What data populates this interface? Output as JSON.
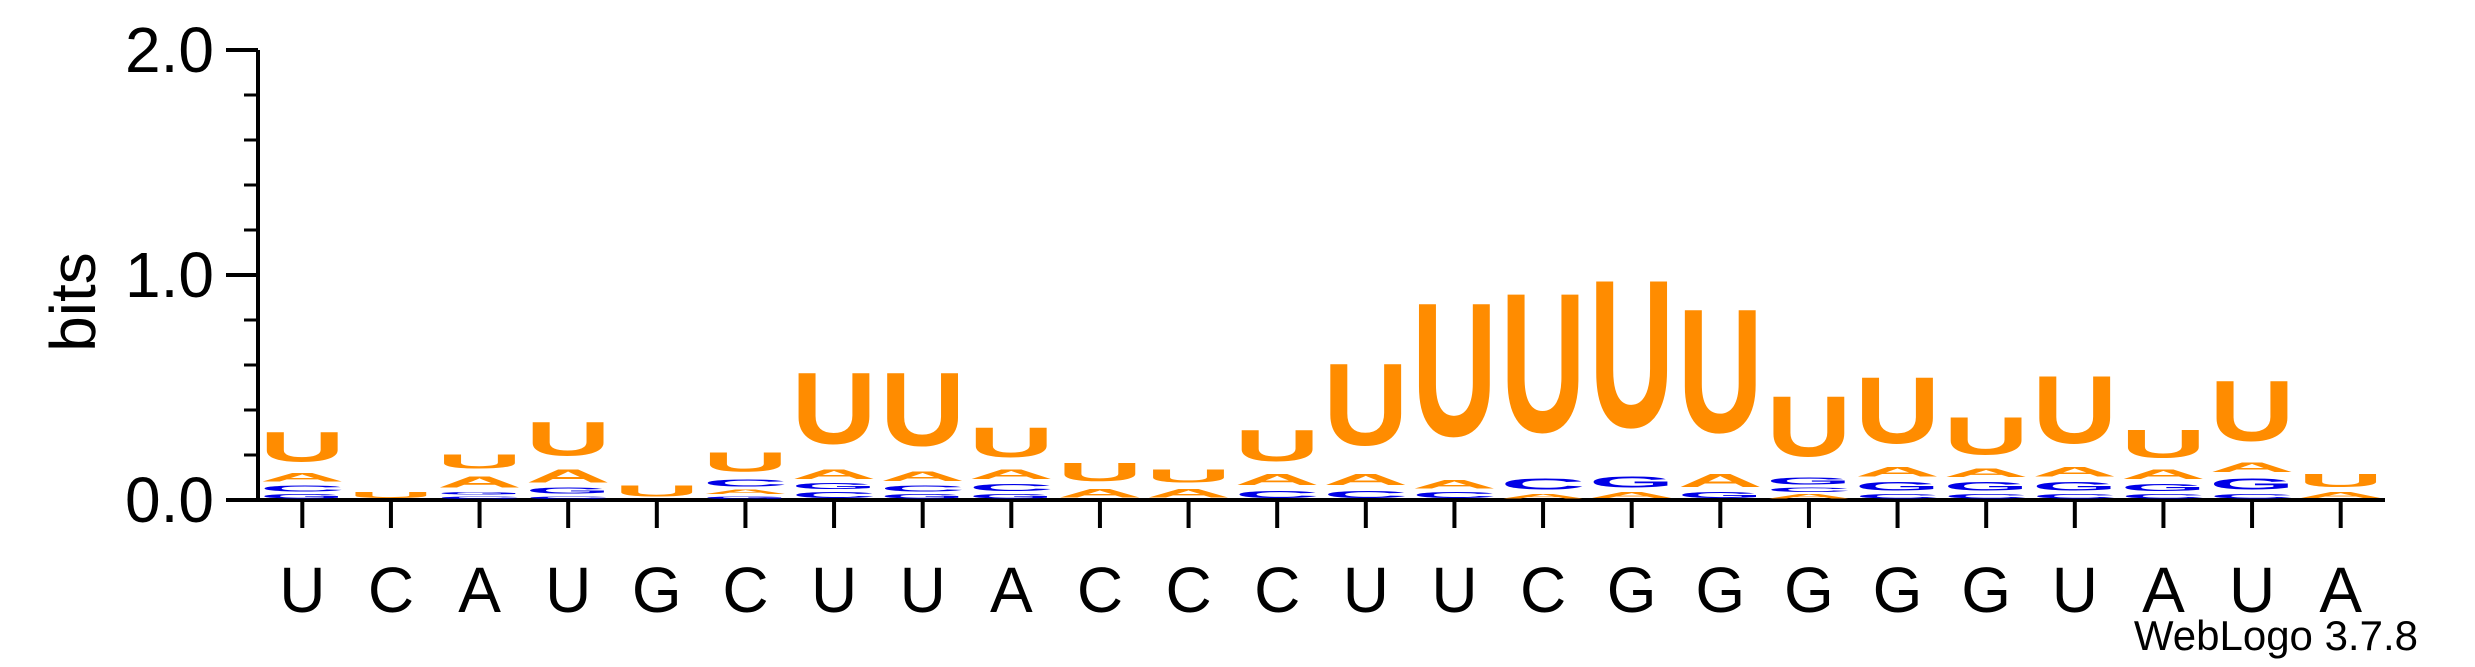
{
  "chart_data": {
    "type": "sequence-logo",
    "title": "",
    "xlabel": "",
    "ylabel": "bits",
    "ylim": [
      0,
      2.0
    ],
    "yticks": [
      "0.0",
      "1.0",
      "2.0"
    ],
    "grid": false,
    "colors": {
      "U": "#FF8C00",
      "A": "#FF8C00",
      "C": "#0000E6",
      "G": "#0000E6"
    },
    "positions": [
      {
        "label": "U",
        "stack": [
          [
            "G",
            0.03
          ],
          [
            "C",
            0.04
          ],
          [
            "A",
            0.06
          ],
          [
            "U",
            0.21
          ]
        ]
      },
      {
        "label": "C",
        "stack": [
          [
            "U",
            0.04
          ]
        ]
      },
      {
        "label": "A",
        "stack": [
          [
            "C",
            0.02
          ],
          [
            "G",
            0.02
          ],
          [
            "A",
            0.08
          ],
          [
            "U",
            0.1
          ]
        ]
      },
      {
        "label": "U",
        "stack": [
          [
            "C",
            0.02
          ],
          [
            "G",
            0.04
          ],
          [
            "A",
            0.09
          ],
          [
            "U",
            0.24
          ]
        ]
      },
      {
        "label": "G",
        "stack": [
          [
            "U",
            0.08
          ]
        ]
      },
      {
        "label": "C",
        "stack": [
          [
            "G",
            0.02
          ],
          [
            "A",
            0.03
          ],
          [
            "C",
            0.05
          ],
          [
            "U",
            0.14
          ]
        ]
      },
      {
        "label": "U",
        "stack": [
          [
            "C",
            0.04
          ],
          [
            "G",
            0.04
          ],
          [
            "A",
            0.07
          ],
          [
            "U",
            0.51
          ]
        ]
      },
      {
        "label": "U",
        "stack": [
          [
            "G",
            0.03
          ],
          [
            "C",
            0.04
          ],
          [
            "A",
            0.07
          ],
          [
            "U",
            0.52
          ]
        ]
      },
      {
        "label": "A",
        "stack": [
          [
            "G",
            0.03
          ],
          [
            "C",
            0.05
          ],
          [
            "A",
            0.07
          ],
          [
            "U",
            0.21
          ]
        ]
      },
      {
        "label": "C",
        "stack": [
          [
            "A",
            0.06
          ],
          [
            "U",
            0.13
          ]
        ]
      },
      {
        "label": "C",
        "stack": [
          [
            "A",
            0.06
          ],
          [
            "U",
            0.09
          ]
        ]
      },
      {
        "label": "C",
        "stack": [
          [
            "C",
            0.05
          ],
          [
            "A",
            0.08
          ],
          [
            "U",
            0.22
          ]
        ]
      },
      {
        "label": "U",
        "stack": [
          [
            "C",
            0.05
          ],
          [
            "A",
            0.08
          ],
          [
            "U",
            0.58
          ]
        ]
      },
      {
        "label": "U",
        "stack": [
          [
            "C",
            0.04
          ],
          [
            "A",
            0.06
          ],
          [
            "U",
            0.95
          ]
        ]
      },
      {
        "label": "C",
        "stack": [
          [
            "A",
            0.03
          ],
          [
            "C",
            0.08
          ],
          [
            "U",
            0.99
          ]
        ]
      },
      {
        "label": "G",
        "stack": [
          [
            "A",
            0.04
          ],
          [
            "G",
            0.08
          ],
          [
            "U",
            1.05
          ]
        ]
      },
      {
        "label": "G",
        "stack": [
          [
            "G",
            0.04
          ],
          [
            "A",
            0.09
          ],
          [
            "U",
            0.88
          ]
        ]
      },
      {
        "label": "G",
        "stack": [
          [
            "A",
            0.03
          ],
          [
            "C",
            0.03
          ],
          [
            "G",
            0.05
          ],
          [
            "U",
            0.43
          ]
        ]
      },
      {
        "label": "G",
        "stack": [
          [
            "C",
            0.03
          ],
          [
            "G",
            0.06
          ],
          [
            "A",
            0.07
          ],
          [
            "U",
            0.47
          ]
        ]
      },
      {
        "label": "G",
        "stack": [
          [
            "C",
            0.03
          ],
          [
            "G",
            0.06
          ],
          [
            "A",
            0.06
          ],
          [
            "U",
            0.27
          ]
        ]
      },
      {
        "label": "U",
        "stack": [
          [
            "C",
            0.03
          ],
          [
            "G",
            0.06
          ],
          [
            "A",
            0.07
          ],
          [
            "U",
            0.48
          ]
        ]
      },
      {
        "label": "A",
        "stack": [
          [
            "C",
            0.03
          ],
          [
            "G",
            0.05
          ],
          [
            "A",
            0.07
          ],
          [
            "U",
            0.2
          ]
        ]
      },
      {
        "label": "U",
        "stack": [
          [
            "C",
            0.03
          ],
          [
            "G",
            0.08
          ],
          [
            "A",
            0.07
          ],
          [
            "U",
            0.43
          ]
        ]
      },
      {
        "label": "A",
        "stack": [
          [
            "A",
            0.04
          ],
          [
            "U",
            0.09
          ]
        ]
      }
    ]
  },
  "footer": {
    "credit": "WebLogo 3.7.8"
  }
}
